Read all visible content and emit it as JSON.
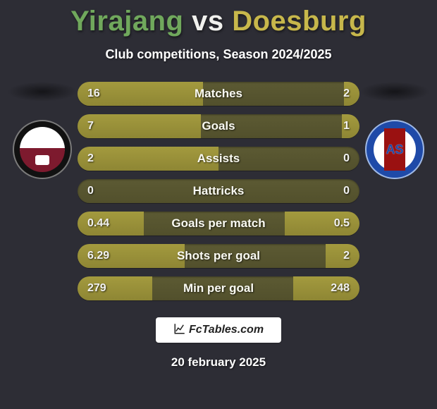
{
  "title": {
    "player_a": "Yirajang",
    "vs": "vs",
    "player_b": "Doesburg",
    "color_a": "#70a85c",
    "color_b": "#c7b74b",
    "fontsize": 40
  },
  "subtitle": "Club competitions, Season 2024/2025",
  "brand": "FcTables.com",
  "date": "20 february 2025",
  "colors": {
    "page_bg": "#2d2d35",
    "bar_track": "#5c5a33",
    "bar_fill": "#a39a3e",
    "text_white": "#f1f1f1"
  },
  "stats": [
    {
      "label": "Matches",
      "a": "16",
      "b": "2",
      "aw": 0.889,
      "bw": 0.111
    },
    {
      "label": "Goals",
      "a": "7",
      "b": "1",
      "aw": 0.875,
      "bw": 0.125
    },
    {
      "label": "Assists",
      "a": "2",
      "b": "0",
      "aw": 1.0,
      "bw": 0.0
    },
    {
      "label": "Hattricks",
      "a": "0",
      "b": "0",
      "aw": 0.0,
      "bw": 0.0
    },
    {
      "label": "Goals per match",
      "a": "0.44",
      "b": "0.5",
      "aw": 0.468,
      "bw": 0.532
    },
    {
      "label": "Shots per goal",
      "a": "6.29",
      "b": "2",
      "aw": 0.759,
      "bw": 0.241
    },
    {
      "label": "Min per goal",
      "a": "279",
      "b": "248",
      "aw": 0.529,
      "bw": 0.471
    }
  ]
}
